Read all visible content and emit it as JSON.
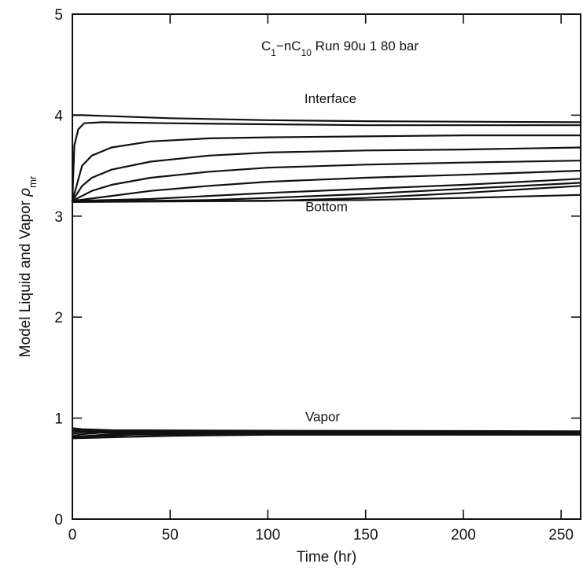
{
  "chart_data": {
    "type": "line",
    "title": "",
    "xlabel": "Time (hr)",
    "ylabel_main": "Model Liquid and Vapor ",
    "ylabel_symbol": "ρ",
    "ylabel_sub": "mr",
    "xlim": [
      0,
      260
    ],
    "ylim": [
      0,
      5
    ],
    "xticks": [
      0,
      50,
      100,
      150,
      200,
      250
    ],
    "yticks": [
      0,
      1,
      2,
      3,
      4,
      5
    ],
    "grid": false,
    "annotations": {
      "header": {
        "c1": "C",
        "c1_sub": "1",
        "dash_nc": "−nC",
        "c10_sub": "10",
        "rest": " Run 90u 1 80 bar"
      },
      "interface": {
        "text": "Interface",
        "x": 132,
        "y": 4.12
      },
      "bottom": {
        "text": "Bottom",
        "x": 130,
        "y": 3.05
      },
      "vapor": {
        "text": "Vapor",
        "x": 128,
        "y": 0.97
      }
    },
    "series": [
      {
        "values": [
          [
            0,
            4.0
          ],
          [
            5,
            4.0
          ],
          [
            50,
            3.97
          ],
          [
            100,
            3.95
          ],
          [
            150,
            3.94
          ],
          [
            200,
            3.935
          ],
          [
            260,
            3.93
          ]
        ]
      },
      {
        "values": [
          [
            0,
            3.15
          ],
          [
            1,
            3.7
          ],
          [
            3,
            3.86
          ],
          [
            6,
            3.92
          ],
          [
            15,
            3.93
          ],
          [
            50,
            3.92
          ],
          [
            100,
            3.91
          ],
          [
            150,
            3.9
          ],
          [
            200,
            3.9
          ],
          [
            260,
            3.9
          ]
        ]
      },
      {
        "values": [
          [
            0,
            3.15
          ],
          [
            5,
            3.5
          ],
          [
            10,
            3.6
          ],
          [
            20,
            3.68
          ],
          [
            40,
            3.74
          ],
          [
            70,
            3.77
          ],
          [
            100,
            3.78
          ],
          [
            150,
            3.79
          ],
          [
            200,
            3.8
          ],
          [
            260,
            3.8
          ]
        ]
      },
      {
        "values": [
          [
            0,
            3.15
          ],
          [
            5,
            3.3
          ],
          [
            10,
            3.38
          ],
          [
            20,
            3.46
          ],
          [
            40,
            3.54
          ],
          [
            70,
            3.6
          ],
          [
            100,
            3.63
          ],
          [
            150,
            3.65
          ],
          [
            200,
            3.66
          ],
          [
            260,
            3.68
          ]
        ]
      },
      {
        "values": [
          [
            0,
            3.15
          ],
          [
            10,
            3.25
          ],
          [
            20,
            3.31
          ],
          [
            40,
            3.38
          ],
          [
            70,
            3.44
          ],
          [
            100,
            3.48
          ],
          [
            150,
            3.51
          ],
          [
            200,
            3.53
          ],
          [
            260,
            3.55
          ]
        ]
      },
      {
        "values": [
          [
            0,
            3.15
          ],
          [
            20,
            3.2
          ],
          [
            40,
            3.25
          ],
          [
            70,
            3.3
          ],
          [
            100,
            3.34
          ],
          [
            150,
            3.38
          ],
          [
            200,
            3.41
          ],
          [
            260,
            3.45
          ]
        ]
      },
      {
        "values": [
          [
            0,
            3.15
          ],
          [
            40,
            3.17
          ],
          [
            70,
            3.2
          ],
          [
            100,
            3.23
          ],
          [
            150,
            3.27
          ],
          [
            200,
            3.31
          ],
          [
            260,
            3.37
          ]
        ]
      },
      {
        "values": [
          [
            0,
            3.14
          ],
          [
            70,
            3.16
          ],
          [
            100,
            3.18
          ],
          [
            150,
            3.22
          ],
          [
            200,
            3.27
          ],
          [
            260,
            3.33
          ]
        ]
      },
      {
        "values": [
          [
            0,
            3.14
          ],
          [
            100,
            3.15
          ],
          [
            150,
            3.18
          ],
          [
            200,
            3.23
          ],
          [
            260,
            3.3
          ]
        ]
      },
      {
        "values": [
          [
            0,
            3.15
          ],
          [
            80,
            3.15
          ],
          [
            150,
            3.16
          ],
          [
            200,
            3.18
          ],
          [
            260,
            3.21
          ]
        ]
      },
      {
        "values": [
          [
            0,
            0.9
          ],
          [
            5,
            0.89
          ],
          [
            20,
            0.88
          ],
          [
            100,
            0.875
          ],
          [
            260,
            0.87
          ]
        ]
      },
      {
        "values": [
          [
            0,
            0.88
          ],
          [
            5,
            0.88
          ],
          [
            20,
            0.875
          ],
          [
            100,
            0.87
          ],
          [
            260,
            0.865
          ]
        ]
      },
      {
        "values": [
          [
            0,
            0.86
          ],
          [
            5,
            0.875
          ],
          [
            20,
            0.87
          ],
          [
            100,
            0.865
          ],
          [
            260,
            0.86
          ]
        ]
      },
      {
        "values": [
          [
            0,
            0.84
          ],
          [
            5,
            0.86
          ],
          [
            20,
            0.865
          ],
          [
            100,
            0.86
          ],
          [
            260,
            0.855
          ]
        ]
      },
      {
        "values": [
          [
            0,
            0.82
          ],
          [
            5,
            0.84
          ],
          [
            15,
            0.855
          ],
          [
            100,
            0.855
          ],
          [
            260,
            0.85
          ]
        ]
      },
      {
        "values": [
          [
            0,
            0.81
          ],
          [
            5,
            0.82
          ],
          [
            20,
            0.84
          ],
          [
            50,
            0.848
          ],
          [
            100,
            0.847
          ],
          [
            260,
            0.845
          ]
        ]
      },
      {
        "values": [
          [
            0,
            0.8
          ],
          [
            10,
            0.815
          ],
          [
            30,
            0.835
          ],
          [
            60,
            0.842
          ],
          [
            260,
            0.84
          ]
        ]
      },
      {
        "values": [
          [
            0,
            0.8
          ],
          [
            20,
            0.81
          ],
          [
            50,
            0.825
          ],
          [
            100,
            0.835
          ],
          [
            260,
            0.835
          ]
        ]
      }
    ]
  }
}
